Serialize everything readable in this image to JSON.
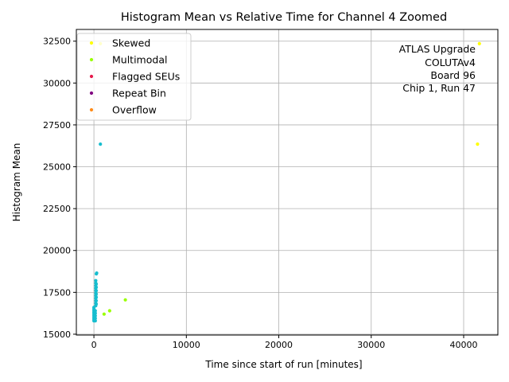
{
  "chart_data": {
    "type": "scatter",
    "title": "Histogram Mean vs Relative Time for Channel 4 Zoomed",
    "xlabel": "Time since start of run [minutes]",
    "ylabel": "Histogram Mean",
    "xlim": [
      -1900,
      43700
    ],
    "ylim": [
      14950,
      33200
    ],
    "x_ticks": [
      0,
      10000,
      20000,
      30000,
      40000
    ],
    "y_ticks": [
      15000,
      17500,
      20000,
      22500,
      25000,
      27500,
      30000,
      32500
    ],
    "grid": true,
    "legend_position": "top-left",
    "annotation": [
      "ATLAS Upgrade",
      "COLUTAv4",
      "Board 96",
      "Chip 1, Run 47"
    ],
    "legend": [
      {
        "name": "Skewed",
        "color": "#ffff00"
      },
      {
        "name": "Multimodal",
        "color": "#99ff00"
      },
      {
        "name": "Flagged SEUs",
        "color": "#e6194b"
      },
      {
        "name": "Repeat Bin",
        "color": "#800080"
      },
      {
        "name": "Overflow",
        "color": "#ff8c1a"
      }
    ],
    "series": [
      {
        "color": "#17becf",
        "points": [
          [
            0,
            15800
          ],
          [
            0,
            15900
          ],
          [
            0,
            16000
          ],
          [
            0,
            16100
          ],
          [
            0,
            16200
          ],
          [
            0,
            16300
          ],
          [
            0,
            16400
          ],
          [
            0,
            16500
          ],
          [
            0,
            16600
          ],
          [
            150,
            15800
          ],
          [
            150,
            15950
          ],
          [
            150,
            16100
          ],
          [
            150,
            16250
          ],
          [
            150,
            16400
          ],
          [
            200,
            16700
          ],
          [
            200,
            16850
          ],
          [
            200,
            17000
          ],
          [
            200,
            17150
          ],
          [
            200,
            17300
          ],
          [
            200,
            17450
          ],
          [
            200,
            17600
          ],
          [
            200,
            17750
          ],
          [
            200,
            17900
          ],
          [
            200,
            18050
          ],
          [
            200,
            18200
          ],
          [
            250,
            16800
          ],
          [
            250,
            17000
          ],
          [
            250,
            17200
          ],
          [
            250,
            17400
          ],
          [
            250,
            17600
          ],
          [
            250,
            17800
          ],
          [
            250,
            18000
          ],
          [
            260,
            18600
          ],
          [
            300,
            18650
          ],
          [
            700,
            26350
          ]
        ]
      },
      {
        "name": "Skewed",
        "color": "#ffff00",
        "points": [
          [
            700,
            32350
          ],
          [
            41700,
            32350
          ],
          [
            41500,
            26350
          ]
        ]
      },
      {
        "name": "Multimodal",
        "color": "#99ff00",
        "points": [
          [
            1100,
            16200
          ],
          [
            1700,
            16400
          ],
          [
            3400,
            17050
          ]
        ]
      }
    ]
  }
}
